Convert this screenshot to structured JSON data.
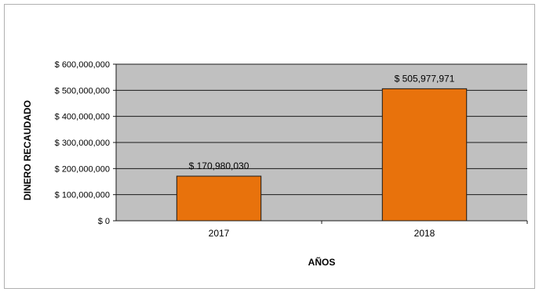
{
  "chart_data": {
    "type": "bar",
    "categories": [
      "2017",
      "2018"
    ],
    "values": [
      170980030,
      505977971
    ],
    "data_labels": [
      "$ 170,980,030",
      "$ 505,977,971"
    ],
    "xlabel": "AÑOS",
    "ylabel": "DINERO RECAUDADO",
    "ylim": [
      0,
      600000000
    ],
    "y_ticks": [
      0,
      100000000,
      200000000,
      300000000,
      400000000,
      500000000,
      600000000
    ],
    "y_tick_labels": [
      "$ 0",
      "$ 100,000,000",
      "$ 200,000,000",
      "$ 300,000,000",
      "$ 400,000,000",
      "$ 500,000,000",
      "$ 600,000,000"
    ],
    "grid": true,
    "legend": "none",
    "colors": {
      "bar_fill": "#E8720C",
      "bar_stroke": "#1a1a1a",
      "plot_bg": "#C0C0C0",
      "gridline": "#1a1a1a",
      "text": "#000000"
    }
  }
}
